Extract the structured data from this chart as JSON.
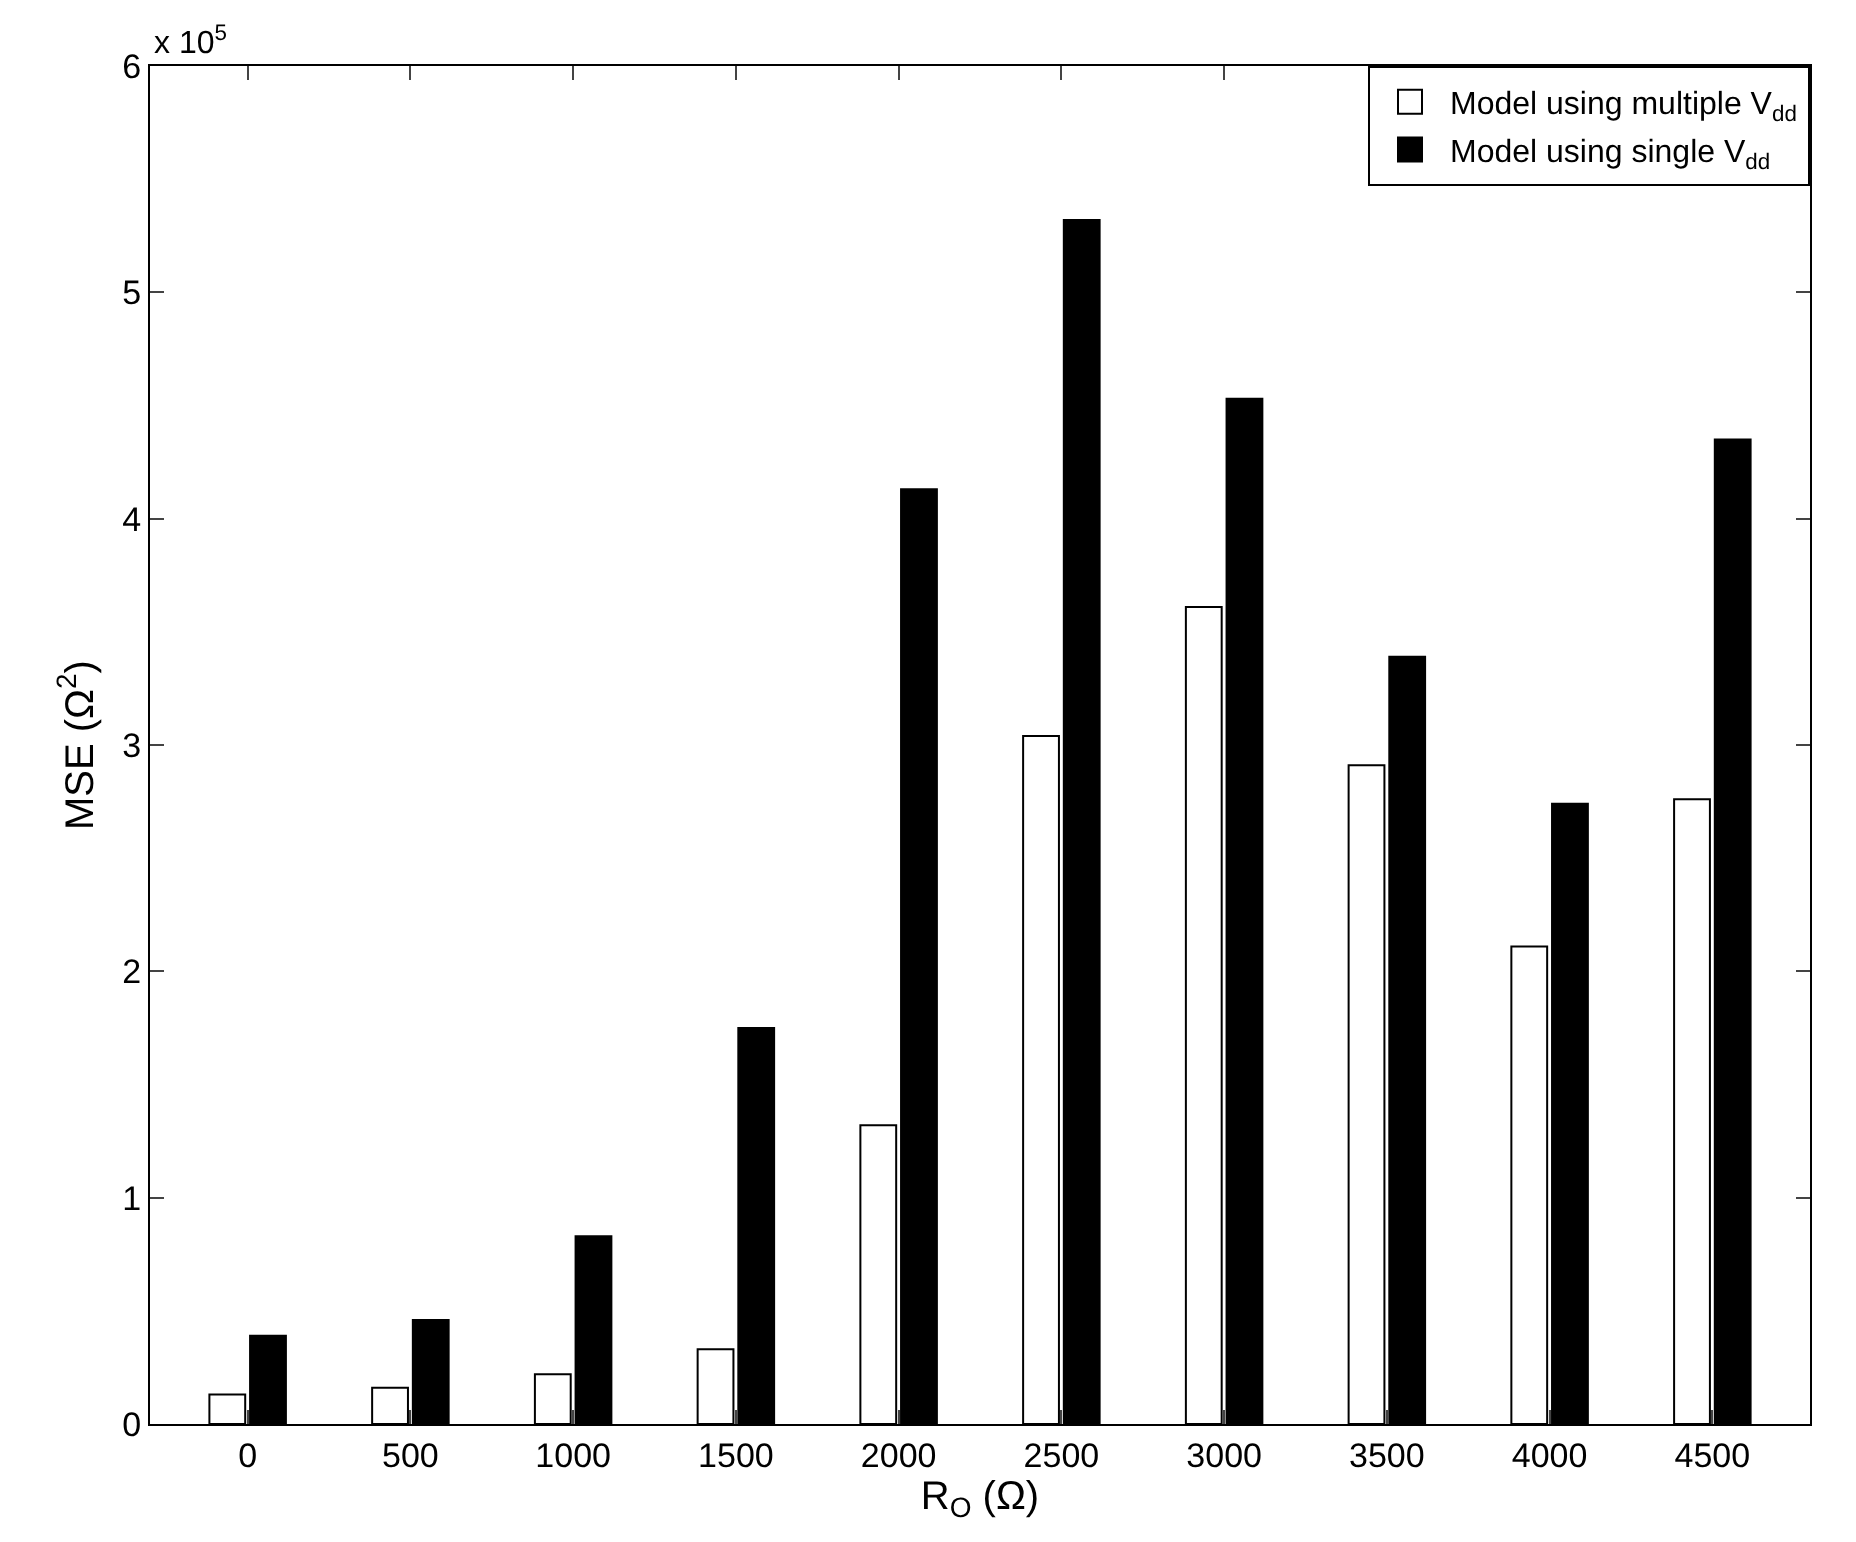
{
  "chart_data": {
    "type": "bar",
    "xlabel": "R$_{O}$ (Ω)",
    "ylabel": "MSE (Ω$^{2}$)",
    "annotations": [
      "x 10$^{5}$"
    ],
    "categories": [
      "0",
      "500",
      "1000",
      "1500",
      "2000",
      "2500",
      "3000",
      "3500",
      "4000",
      "4500"
    ],
    "series": [
      {
        "name": "Model using multiple V$_{dd}$",
        "color": "#ffffff",
        "values": [
          0.13,
          0.16,
          0.22,
          0.33,
          1.32,
          3.04,
          3.61,
          2.91,
          2.11,
          2.76
        ]
      },
      {
        "name": "Model using single V$_{dd}$",
        "color": "#000000",
        "values": [
          0.39,
          0.46,
          0.83,
          1.75,
          4.13,
          5.32,
          4.53,
          3.39,
          2.74,
          4.35
        ]
      }
    ],
    "ylim": [
      0,
      6
    ],
    "yticks": [
      0,
      1,
      2,
      3,
      4,
      5,
      6
    ],
    "legend": "top right"
  }
}
